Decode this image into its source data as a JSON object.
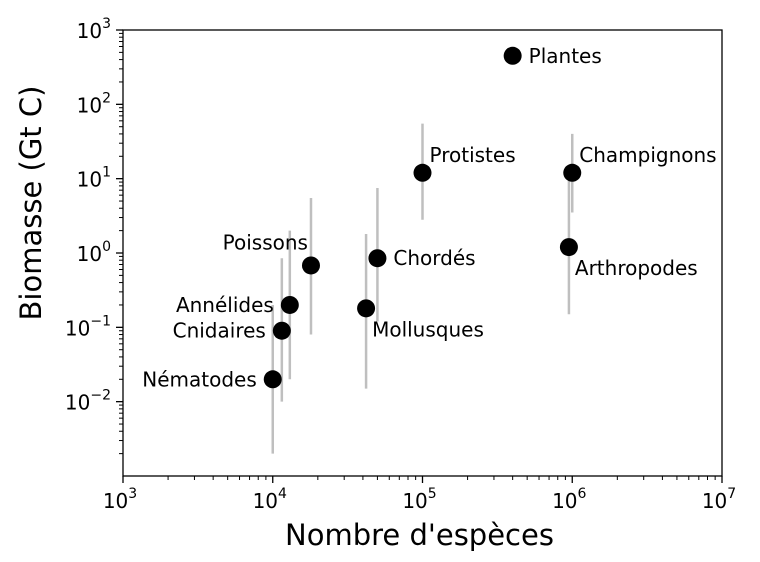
{
  "chart_data": {
    "type": "scatter",
    "xlabel": "Nombre d'espèces",
    "ylabel": "Biomasse (Gt C)",
    "x_scale": "log",
    "y_scale": "log",
    "xlim": [
      1000,
      10000000
    ],
    "ylim": [
      0.001,
      1000
    ],
    "grid": false,
    "x_ticks": [
      {
        "base": "10",
        "exp": "3",
        "value": 1000
      },
      {
        "base": "10",
        "exp": "4",
        "value": 10000
      },
      {
        "base": "10",
        "exp": "5",
        "value": 100000
      },
      {
        "base": "10",
        "exp": "6",
        "value": 1000000
      },
      {
        "base": "10",
        "exp": "7",
        "value": 10000000
      }
    ],
    "y_ticks": [
      {
        "base": "10",
        "exp": "−2",
        "value": 0.01
      },
      {
        "base": "10",
        "exp": "−1",
        "value": 0.1
      },
      {
        "base": "10",
        "exp": "0",
        "value": 1
      },
      {
        "base": "10",
        "exp": "1",
        "value": 10
      },
      {
        "base": "10",
        "exp": "2",
        "value": 100
      },
      {
        "base": "10",
        "exp": "3",
        "value": 1000
      }
    ],
    "points": [
      {
        "label": "Plantes",
        "x": 400000,
        "y": 450,
        "err_low": null,
        "err_high": null,
        "label_pos": "right"
      },
      {
        "label": "Protistes",
        "x": 100000,
        "y": 12,
        "err_low": 2.8,
        "err_high": 55,
        "label_pos": "above-right"
      },
      {
        "label": "Champignons",
        "x": 1000000,
        "y": 12,
        "err_low": 3.5,
        "err_high": 40,
        "label_pos": "above-right"
      },
      {
        "label": "Chordés",
        "x": 50000,
        "y": 0.85,
        "err_low": 0.12,
        "err_high": 7.5,
        "label_pos": "right"
      },
      {
        "label": "Arthropodes",
        "x": 950000,
        "y": 1.2,
        "err_low": 0.15,
        "err_high": 10,
        "label_pos": "below-right"
      },
      {
        "label": "Mollusques",
        "x": 42000,
        "y": 0.18,
        "err_low": 0.015,
        "err_high": 1.8,
        "label_pos": "below-right"
      },
      {
        "label": "Poissons",
        "x": 18000,
        "y": 0.68,
        "err_low": 0.08,
        "err_high": 5.5,
        "label_pos": "above-left"
      },
      {
        "label": "Annélides",
        "x": 13000,
        "y": 0.2,
        "err_low": 0.02,
        "err_high": 2,
        "label_pos": "left"
      },
      {
        "label": "Cnidaires",
        "x": 11500,
        "y": 0.09,
        "err_low": 0.01,
        "err_high": 0.85,
        "label_pos": "left"
      },
      {
        "label": "Nématodes",
        "x": 10000,
        "y": 0.02,
        "err_low": 0.002,
        "err_high": 0.2,
        "label_pos": "left"
      }
    ],
    "colors": {
      "marker": "#000000",
      "error_bar": "#bfbfbf",
      "axes": "#000000",
      "background": "#ffffff"
    }
  }
}
